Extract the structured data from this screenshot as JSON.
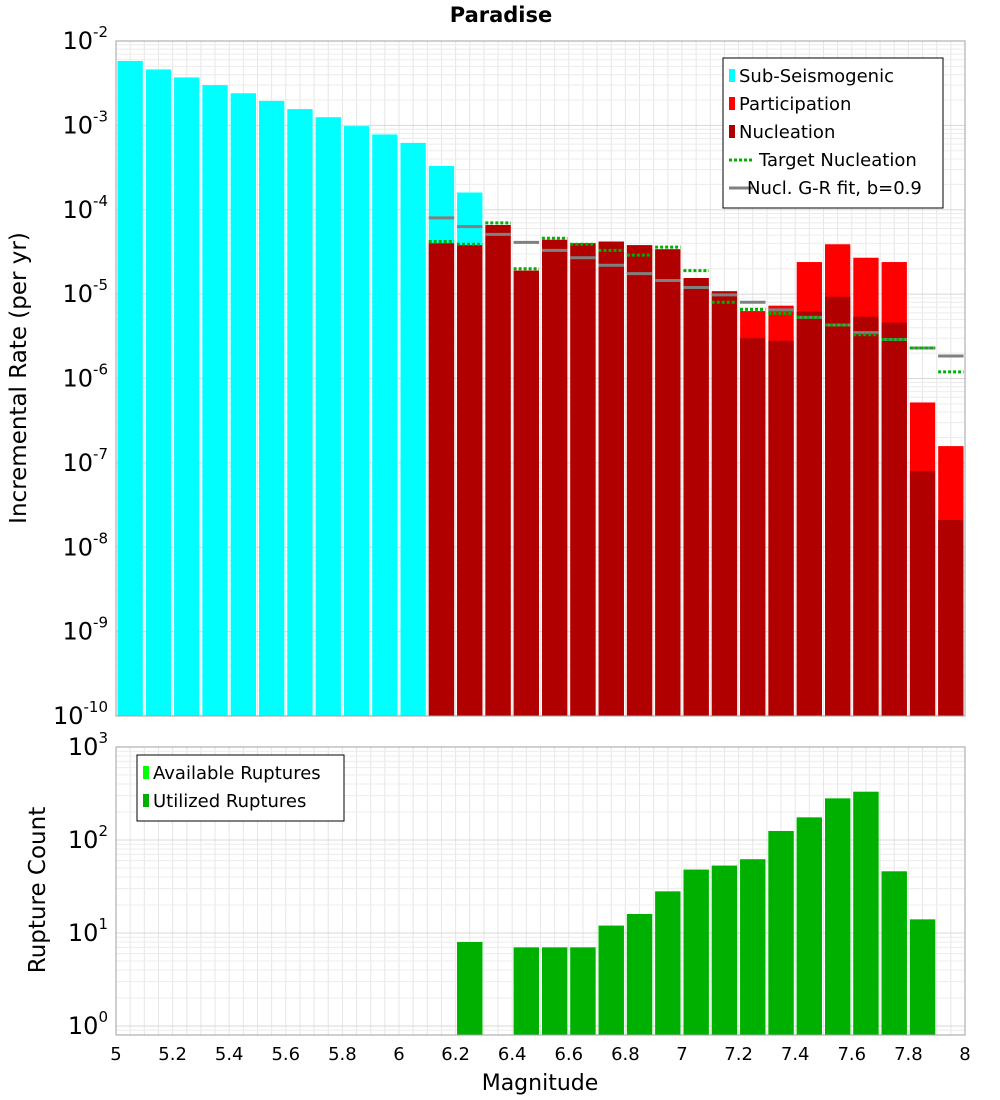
{
  "chart_data": [
    {
      "type": "bar",
      "title": "Paradise",
      "xlabel": "",
      "ylabel": "Incremental Rate (per yr)",
      "yscale": "log",
      "xlim": [
        5,
        8
      ],
      "ylim": [
        1e-10,
        0.01
      ],
      "grid": true,
      "legend_position": "top-right",
      "y_ticks": [
        {
          "base": "10",
          "exp": "-2"
        },
        {
          "base": "10",
          "exp": "-3"
        },
        {
          "base": "10",
          "exp": "-4"
        },
        {
          "base": "10",
          "exp": "-5"
        },
        {
          "base": "10",
          "exp": "-6"
        },
        {
          "base": "10",
          "exp": "-7"
        },
        {
          "base": "10",
          "exp": "-8"
        },
        {
          "base": "10",
          "exp": "-9"
        },
        {
          "base": "10",
          "exp": "-10"
        }
      ],
      "x_ticks": [
        "5",
        "5.2",
        "5.4",
        "5.6",
        "5.8",
        "6",
        "6.2",
        "6.4",
        "6.6",
        "6.8",
        "7",
        "7.2",
        "7.4",
        "7.6",
        "7.8",
        "8"
      ],
      "bin_width": 0.1,
      "series": [
        {
          "name": "Sub-Seismogenic",
          "color": "#00ffff",
          "mark": "bar",
          "x": [
            5.05,
            5.15,
            5.25,
            5.35,
            5.45,
            5.55,
            5.65,
            5.75,
            5.85,
            5.95,
            6.05,
            6.15,
            6.25
          ],
          "values": [
            0.0058,
            0.0046,
            0.0037,
            0.003,
            0.0024,
            0.00195,
            0.00156,
            0.00125,
            0.00098,
            0.00078,
            0.00062,
            0.00033,
            0.00016
          ]
        },
        {
          "name": "Participation",
          "color": "#ff0000",
          "mark": "bar",
          "x": [
            6.15,
            6.25,
            6.35,
            6.45,
            6.55,
            6.65,
            6.75,
            6.85,
            6.95,
            7.05,
            7.15,
            7.25,
            7.35,
            7.45,
            7.55,
            7.65,
            7.75,
            7.85,
            7.95
          ],
          "values": [
            4e-05,
            3.8e-05,
            6.6e-05,
            1.9e-05,
            4.4e-05,
            4e-05,
            4.2e-05,
            3.8e-05,
            3.4e-05,
            1.55e-05,
            1.08e-05,
            6.3e-06,
            7.3e-06,
            2.4e-05,
            3.9e-05,
            2.7e-05,
            2.4e-05,
            5.2e-07,
            1.58e-07
          ]
        },
        {
          "name": "Nucleation",
          "color": "#b00000",
          "mark": "bar",
          "x": [
            6.15,
            6.25,
            6.35,
            6.45,
            6.55,
            6.65,
            6.75,
            6.85,
            6.95,
            7.05,
            7.15,
            7.25,
            7.35,
            7.45,
            7.55,
            7.65,
            7.75,
            7.85,
            7.95
          ],
          "values": [
            4e-05,
            3.8e-05,
            6.6e-05,
            1.9e-05,
            4.4e-05,
            4e-05,
            4.2e-05,
            3.8e-05,
            3.4e-05,
            1.55e-05,
            1.08e-05,
            3e-06,
            2.8e-06,
            6.2e-06,
            9.3e-06,
            5.4e-06,
            4.6e-06,
            8e-08,
            2.1e-08
          ]
        },
        {
          "name": "Target Nucleation",
          "color": "#00b000",
          "mark": "dotted-step",
          "x": [
            6.15,
            6.25,
            6.35,
            6.45,
            6.55,
            6.65,
            6.75,
            6.85,
            6.95,
            7.05,
            7.15,
            7.25,
            7.35,
            7.45,
            7.55,
            7.65,
            7.75,
            7.85,
            7.95
          ],
          "values": [
            4.2e-05,
            3.9e-05,
            7e-05,
            2e-05,
            4.6e-05,
            3.9e-05,
            3.3e-05,
            2.9e-05,
            3.6e-05,
            1.9e-05,
            8e-06,
            6.6e-06,
            5.9e-06,
            5.3e-06,
            4.3e-06,
            3.3e-06,
            2.9e-06,
            2.3e-06,
            1.2e-06
          ]
        },
        {
          "name": "Nucl. G-R fit, b=0.9",
          "color": "#808080",
          "mark": "step",
          "x": [
            6.15,
            6.25,
            6.35,
            6.45,
            6.55,
            6.65,
            6.75,
            6.85,
            6.95,
            7.05,
            7.15,
            7.25,
            7.35,
            7.45,
            7.55,
            7.65,
            7.75,
            7.85,
            7.95
          ],
          "values": [
            8e-05,
            6.3e-05,
            5.1e-05,
            4.1e-05,
            3.3e-05,
            2.7e-05,
            2.2e-05,
            1.75e-05,
            1.45e-05,
            1.2e-05,
            9.8e-06,
            8e-06,
            6.5e-06,
            5.3e-06,
            4.3e-06,
            3.5e-06,
            2.9e-06,
            2.3e-06,
            1.85e-06
          ]
        }
      ]
    },
    {
      "type": "bar",
      "title": "",
      "xlabel": "Magnitude",
      "ylabel": "Rupture Count",
      "yscale": "log",
      "xlim": [
        5,
        8
      ],
      "ylim": [
        0.8,
        1000
      ],
      "grid": true,
      "legend_position": "top-left",
      "y_ticks": [
        {
          "base": "10",
          "exp": "3"
        },
        {
          "base": "10",
          "exp": "2"
        },
        {
          "base": "10",
          "exp": "1"
        },
        {
          "base": "10",
          "exp": "0"
        }
      ],
      "x_ticks": [
        "5",
        "5.2",
        "5.4",
        "5.6",
        "5.8",
        "6",
        "6.2",
        "6.4",
        "6.6",
        "6.8",
        "7",
        "7.2",
        "7.4",
        "7.6",
        "7.8",
        "8"
      ],
      "bin_width": 0.1,
      "series": [
        {
          "name": "Available Ruptures",
          "color": "#00ff00",
          "mark": "bar",
          "x": [
            6.25,
            6.45,
            6.55,
            6.65,
            6.75,
            6.85,
            6.95,
            7.05,
            7.15,
            7.25,
            7.35,
            7.45,
            7.55,
            7.65,
            7.75,
            7.85
          ],
          "values": [
            8,
            7,
            7,
            7,
            12,
            16,
            28,
            48,
            53,
            62,
            125,
            175,
            280,
            330,
            46,
            14
          ]
        },
        {
          "name": "Utilized Ruptures",
          "color": "#00b000",
          "mark": "bar",
          "x": [
            6.25,
            6.45,
            6.55,
            6.65,
            6.75,
            6.85,
            6.95,
            7.05,
            7.15,
            7.25,
            7.35,
            7.45,
            7.55,
            7.65,
            7.75,
            7.85
          ],
          "values": [
            8,
            7,
            7,
            7,
            12,
            16,
            28,
            48,
            53,
            62,
            125,
            175,
            280,
            330,
            46,
            14
          ]
        }
      ]
    }
  ]
}
